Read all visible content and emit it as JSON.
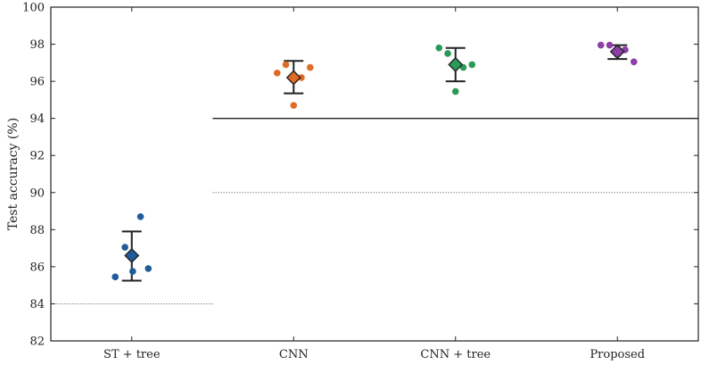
{
  "chart_data": {
    "type": "scatter",
    "title": "",
    "xlabel": "",
    "ylabel": "Test accuracy (%)",
    "categories": [
      "ST + tree",
      "CNN",
      "CNN + tree",
      "Proposed"
    ],
    "yticks": [
      "82",
      "84",
      "86",
      "88",
      "90",
      "92",
      "94",
      "96",
      "98",
      "100"
    ],
    "ylim": [
      82,
      100
    ],
    "grid": false,
    "series": [
      {
        "category": "ST + tree",
        "color": "#1f5c99",
        "points": [
          {
            "offset": -0.17,
            "y": 85.45
          },
          {
            "offset": -0.07,
            "y": 87.05
          },
          {
            "offset": 0.01,
            "y": 85.75
          },
          {
            "offset": 0.09,
            "y": 88.7
          },
          {
            "offset": 0.17,
            "y": 85.9
          }
        ],
        "mean": 86.6,
        "err_low": 85.25,
        "err_high": 87.9
      },
      {
        "category": "CNN",
        "color": "#e06b26",
        "points": [
          {
            "offset": -0.17,
            "y": 96.45
          },
          {
            "offset": -0.08,
            "y": 96.9
          },
          {
            "offset": 0.0,
            "y": 94.7
          },
          {
            "offset": 0.08,
            "y": 96.2
          },
          {
            "offset": 0.17,
            "y": 96.75
          }
        ],
        "mean": 96.2,
        "err_low": 95.35,
        "err_high": 97.1
      },
      {
        "category": "CNN + tree",
        "color": "#2a9a57",
        "points": [
          {
            "offset": -0.17,
            "y": 97.8
          },
          {
            "offset": -0.08,
            "y": 97.5
          },
          {
            "offset": 0.0,
            "y": 95.45
          },
          {
            "offset": 0.08,
            "y": 96.75
          },
          {
            "offset": 0.17,
            "y": 96.9
          }
        ],
        "mean": 96.9,
        "err_low": 96.0,
        "err_high": 97.8
      },
      {
        "category": "Proposed",
        "color": "#8c3fa8",
        "points": [
          {
            "offset": -0.17,
            "y": 97.95
          },
          {
            "offset": -0.08,
            "y": 97.95
          },
          {
            "offset": 0.0,
            "y": 97.7
          },
          {
            "offset": 0.08,
            "y": 97.7
          },
          {
            "offset": 0.17,
            "y": 97.05
          }
        ],
        "mean": 97.6,
        "err_low": 97.2,
        "err_high": 97.95
      }
    ],
    "reference_lines": [
      {
        "style": "dotted",
        "y": 84,
        "x_from": -0.5,
        "x_to": 0.5
      },
      {
        "style": "solid",
        "y": 94,
        "x_from": 0.5,
        "x_to": 3.5
      },
      {
        "style": "dotted",
        "y": 90,
        "x_from": 0.5,
        "x_to": 3.5
      }
    ]
  }
}
